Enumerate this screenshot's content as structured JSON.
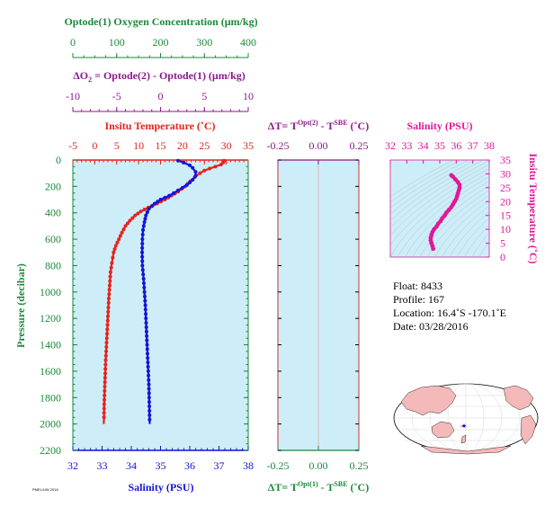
{
  "labels": {
    "oxygen_axis": "Optode(1) Oxygen Concentration (μm/kg)",
    "delta_o2_axis_delta": "ΔO",
    "delta_o2_axis_sub": "2",
    "delta_o2_axis_rest": " = Optode(2) - Optode(1)    (μm/kg)",
    "temperature_axis": "Insitu Temperature (˚C)",
    "salinity_axis": "Salinity (PSU)",
    "pressure_axis": "Pressure (decibar)",
    "dT_top_a": "ΔT= T",
    "dT_top_sup1": "Opt(2)",
    "dT_top_b": " - T",
    "dT_top_sup2": "SBE",
    "dT_top_c": " (˚C)",
    "dT_bot_a": "ΔT= T",
    "dT_bot_sup1": "Opt(1)",
    "dT_bot_b": " - T",
    "dT_bot_sup2": "SBE",
    "dT_bot_c": " (˚C)",
    "inset_salinity_axis": "Salinity (PSU)",
    "inset_temperature_axis": "Insitu Temperature (˚C)",
    "footer_code": "PMEL/UW 2016"
  },
  "info": {
    "float": "Float:  8433",
    "profile": "Profile:  167",
    "location": "Location:  16.4˚S  -170.1˚E",
    "date": "Date:  03/28/2016"
  },
  "colors": {
    "temperature": "#e8221c",
    "salinity": "#1414d8",
    "oxygen": "#1a8a3a",
    "delta_o2": "#8a1a8a",
    "inset": "#e0189a",
    "plot_bg": "#cdeef8",
    "land": "#f4b9b9"
  },
  "chart_data": {
    "type": "line",
    "y": {
      "label": "Pressure (decibar)",
      "range": [
        0,
        2200
      ],
      "inverted": true,
      "ticks": [
        0,
        200,
        400,
        600,
        800,
        1000,
        1200,
        1400,
        1600,
        1800,
        2000,
        2200
      ]
    },
    "x_axes": {
      "oxygen": {
        "range": [
          0,
          400
        ],
        "ticks": [
          0,
          100,
          200,
          300,
          400
        ]
      },
      "delta_o2": {
        "range": [
          -10,
          10
        ],
        "ticks": [
          -10,
          -5,
          0,
          5,
          10
        ]
      },
      "temperature": {
        "range": [
          -5,
          35
        ],
        "ticks": [
          -5,
          0,
          5,
          10,
          15,
          20,
          25,
          30,
          35
        ]
      },
      "salinity": {
        "range": [
          32,
          38
        ],
        "ticks": [
          32,
          33,
          34,
          35,
          36,
          37,
          38
        ]
      },
      "delta_t": {
        "range": [
          -0.25,
          0.25
        ],
        "ticks": [
          "-0.25",
          "0.00",
          "0.25"
        ]
      }
    },
    "series": [
      {
        "name": "Insitu Temperature (˚C)",
        "color": "#e8221c",
        "points": [
          [
            29.5,
            5
          ],
          [
            29.3,
            20
          ],
          [
            28.8,
            35
          ],
          [
            27.5,
            50
          ],
          [
            26.2,
            65
          ],
          [
            25.0,
            80
          ],
          [
            24.0,
            100
          ],
          [
            22.8,
            130
          ],
          [
            21.8,
            160
          ],
          [
            20.6,
            200
          ],
          [
            19.0,
            240
          ],
          [
            17.5,
            270
          ],
          [
            16.0,
            300
          ],
          [
            14.2,
            330
          ],
          [
            12.2,
            360
          ],
          [
            10.5,
            390
          ],
          [
            9.2,
            420
          ],
          [
            8.0,
            460
          ],
          [
            7.0,
            500
          ],
          [
            6.2,
            550
          ],
          [
            5.5,
            600
          ],
          [
            4.8,
            650
          ],
          [
            4.3,
            700
          ],
          [
            3.9,
            780
          ],
          [
            3.6,
            850
          ],
          [
            3.4,
            950
          ],
          [
            3.2,
            1050
          ],
          [
            3.05,
            1150
          ],
          [
            2.9,
            1250
          ],
          [
            2.75,
            1350
          ],
          [
            2.6,
            1450
          ],
          [
            2.45,
            1550
          ],
          [
            2.35,
            1650
          ],
          [
            2.25,
            1750
          ],
          [
            2.15,
            1850
          ],
          [
            2.1,
            1950
          ],
          [
            2.05,
            2000
          ]
        ]
      },
      {
        "name": "Salinity (PSU)",
        "color": "#1414d8",
        "points": [
          [
            35.6,
            5
          ],
          [
            35.8,
            20
          ],
          [
            36.0,
            40
          ],
          [
            36.1,
            60
          ],
          [
            36.2,
            90
          ],
          [
            36.2,
            120
          ],
          [
            36.1,
            150
          ],
          [
            35.9,
            190
          ],
          [
            35.6,
            230
          ],
          [
            35.3,
            270
          ],
          [
            35.0,
            300
          ],
          [
            34.8,
            330
          ],
          [
            34.6,
            370
          ],
          [
            34.5,
            420
          ],
          [
            34.45,
            470
          ],
          [
            34.4,
            530
          ],
          [
            34.38,
            600
          ],
          [
            34.37,
            700
          ],
          [
            34.38,
            800
          ],
          [
            34.42,
            900
          ],
          [
            34.45,
            1000
          ],
          [
            34.48,
            1100
          ],
          [
            34.5,
            1200
          ],
          [
            34.52,
            1300
          ],
          [
            34.54,
            1400
          ],
          [
            34.56,
            1500
          ],
          [
            34.58,
            1600
          ],
          [
            34.6,
            1700
          ],
          [
            34.61,
            1800
          ],
          [
            34.62,
            1900
          ],
          [
            34.63,
            2000
          ]
        ]
      }
    ],
    "delta_t_series": [],
    "inset": {
      "type": "scatter",
      "x_label": "Salinity (PSU)",
      "y_label": "Insitu Temperature (˚C)",
      "xlim": [
        32,
        38
      ],
      "ylim": [
        0,
        35
      ],
      "x_ticks": [
        32,
        33,
        34,
        35,
        36,
        37,
        38
      ],
      "y_ticks": [
        0,
        5,
        10,
        15,
        20,
        25,
        30,
        35
      ],
      "points": [
        [
          34.6,
          3
        ],
        [
          34.55,
          4
        ],
        [
          34.5,
          5
        ],
        [
          34.45,
          6
        ],
        [
          34.45,
          7
        ],
        [
          34.5,
          8
        ],
        [
          34.55,
          9
        ],
        [
          34.65,
          10
        ],
        [
          34.8,
          11
        ],
        [
          34.9,
          12
        ],
        [
          35.05,
          13
        ],
        [
          35.15,
          14
        ],
        [
          35.3,
          15
        ],
        [
          35.4,
          16
        ],
        [
          35.55,
          17
        ],
        [
          35.7,
          18
        ],
        [
          35.8,
          19
        ],
        [
          35.9,
          20
        ],
        [
          36.0,
          21
        ],
        [
          36.05,
          22
        ],
        [
          36.1,
          23
        ],
        [
          36.15,
          24
        ],
        [
          36.2,
          25
        ],
        [
          36.2,
          26
        ],
        [
          36.1,
          27
        ],
        [
          35.95,
          28
        ],
        [
          35.8,
          29
        ],
        [
          35.7,
          29.5
        ]
      ]
    },
    "map": {
      "float_lat": -16.4,
      "float_lon": -170.1
    }
  }
}
